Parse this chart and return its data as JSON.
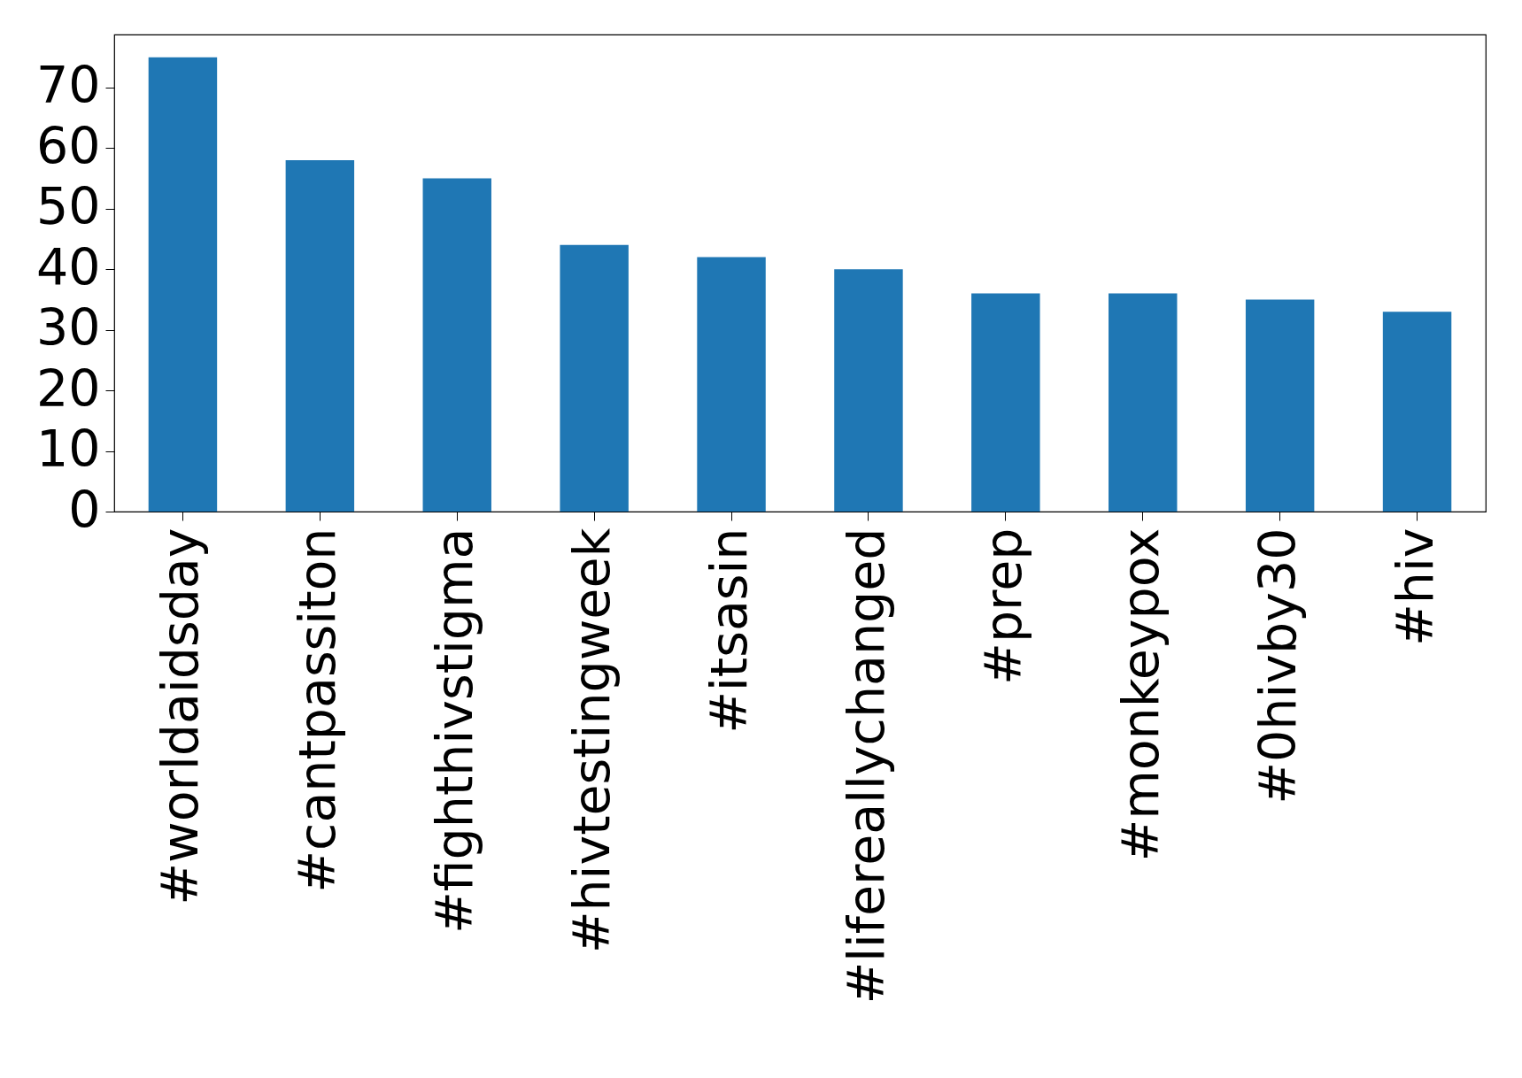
{
  "chart_data": {
    "type": "bar",
    "categories": [
      "#worldaidsday",
      "#cantpassiton",
      "#fighthivstigma",
      "#hivtestingweek",
      "#itsasin",
      "#lifereallychanged",
      "#prep",
      "#monkeypox",
      "#0hivby30",
      "#hiv"
    ],
    "values": [
      75,
      58,
      55,
      44,
      42,
      40,
      36,
      36,
      35,
      33
    ],
    "color": "#1f77b4",
    "ylim": [
      0,
      78.75
    ],
    "yticks": [
      0,
      10,
      20,
      30,
      40,
      50,
      60,
      70
    ],
    "grid": false
  }
}
